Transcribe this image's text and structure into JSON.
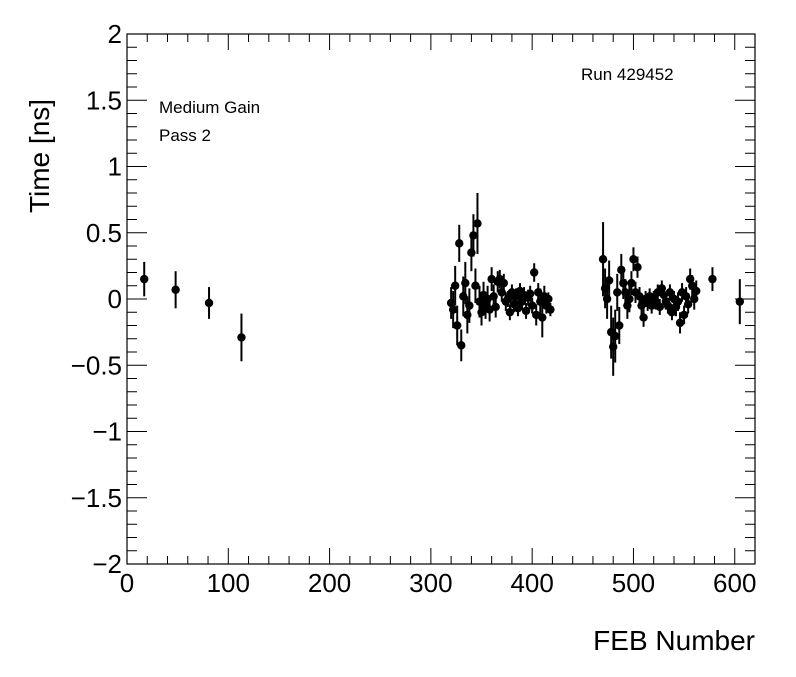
{
  "chart_data": {
    "type": "scatter",
    "title": "",
    "xlabel": "FEB Number",
    "ylabel": "Time [ns]",
    "xlim": [
      0,
      620
    ],
    "ylim": [
      -2,
      2
    ],
    "x_ticks": [
      0,
      100,
      200,
      300,
      400,
      500,
      600
    ],
    "y_ticks": [
      -2,
      -1.5,
      -1,
      -0.5,
      0,
      0.5,
      1,
      1.5,
      2
    ],
    "x_tick_labels": [
      "0",
      "100",
      "200",
      "300",
      "400",
      "500",
      "600"
    ],
    "y_tick_labels": [
      "−2",
      "−1.5",
      "−1",
      "−0.5",
      "0",
      "0.5",
      "1",
      "1.5",
      "2"
    ],
    "grid": false,
    "legend": "none",
    "annotations": {
      "run": "Run 429452",
      "gain": "Medium Gain",
      "pass": "Pass 2"
    },
    "series": [
      {
        "marker": "circle",
        "color": "#000000",
        "points": [
          {
            "x": 17,
            "y": 0.15,
            "err": 0.13
          },
          {
            "x": 48,
            "y": 0.07,
            "err": 0.14
          },
          {
            "x": 81,
            "y": -0.03,
            "err": 0.12
          },
          {
            "x": 113,
            "y": -0.29,
            "err": 0.18
          },
          {
            "x": 320,
            "y": -0.03,
            "err": 0.12
          },
          {
            "x": 322,
            "y": -0.08,
            "err": 0.14
          },
          {
            "x": 324,
            "y": 0.1,
            "err": 0.15
          },
          {
            "x": 326,
            "y": -0.2,
            "err": 0.15
          },
          {
            "x": 328,
            "y": 0.42,
            "err": 0.14
          },
          {
            "x": 330,
            "y": -0.35,
            "err": 0.12
          },
          {
            "x": 332,
            "y": 0.02,
            "err": 0.15
          },
          {
            "x": 334,
            "y": 0.12,
            "err": 0.16
          },
          {
            "x": 336,
            "y": -0.12,
            "err": 0.14
          },
          {
            "x": 338,
            "y": -0.05,
            "err": 0.13
          },
          {
            "x": 340,
            "y": 0.35,
            "err": 0.14
          },
          {
            "x": 342,
            "y": 0.48,
            "err": 0.16
          },
          {
            "x": 344,
            "y": 0.1,
            "err": 0.13
          },
          {
            "x": 346,
            "y": 0.57,
            "err": 0.23
          },
          {
            "x": 348,
            "y": -0.02,
            "err": 0.12
          },
          {
            "x": 350,
            "y": -0.1,
            "err": 0.1
          },
          {
            "x": 352,
            "y": 0.03,
            "err": 0.1
          },
          {
            "x": 354,
            "y": -0.05,
            "err": 0.1
          },
          {
            "x": 356,
            "y": 0.0,
            "err": 0.1
          },
          {
            "x": 358,
            "y": -0.08,
            "err": 0.09
          },
          {
            "x": 360,
            "y": 0.15,
            "err": 0.09
          },
          {
            "x": 362,
            "y": 0.02,
            "err": 0.09
          },
          {
            "x": 364,
            "y": -0.06,
            "err": 0.08
          },
          {
            "x": 366,
            "y": 0.13,
            "err": 0.08
          },
          {
            "x": 368,
            "y": 0.15,
            "err": 0.07
          },
          {
            "x": 370,
            "y": 0.05,
            "err": 0.07
          },
          {
            "x": 372,
            "y": 0.12,
            "err": 0.07
          },
          {
            "x": 374,
            "y": -0.02,
            "err": 0.07
          },
          {
            "x": 376,
            "y": 0.0,
            "err": 0.06
          },
          {
            "x": 378,
            "y": -0.1,
            "err": 0.06
          },
          {
            "x": 380,
            "y": 0.05,
            "err": 0.06
          },
          {
            "x": 382,
            "y": -0.04,
            "err": 0.06
          },
          {
            "x": 384,
            "y": 0.02,
            "err": 0.06
          },
          {
            "x": 386,
            "y": -0.07,
            "err": 0.06
          },
          {
            "x": 388,
            "y": 0.06,
            "err": 0.06
          },
          {
            "x": 390,
            "y": -0.02,
            "err": 0.06
          },
          {
            "x": 392,
            "y": 0.03,
            "err": 0.06
          },
          {
            "x": 394,
            "y": -0.09,
            "err": 0.06
          },
          {
            "x": 396,
            "y": 0.01,
            "err": 0.06
          },
          {
            "x": 398,
            "y": 0.04,
            "err": 0.06
          },
          {
            "x": 400,
            "y": -0.05,
            "err": 0.06
          },
          {
            "x": 402,
            "y": 0.2,
            "err": 0.07
          },
          {
            "x": 404,
            "y": -0.12,
            "err": 0.08
          },
          {
            "x": 406,
            "y": 0.05,
            "err": 0.07
          },
          {
            "x": 408,
            "y": -0.02,
            "err": 0.1
          },
          {
            "x": 410,
            "y": -0.14,
            "err": 0.15
          },
          {
            "x": 412,
            "y": 0.02,
            "err": 0.08
          },
          {
            "x": 414,
            "y": -0.05,
            "err": 0.06
          },
          {
            "x": 416,
            "y": 0.0,
            "err": 0.05
          },
          {
            "x": 418,
            "y": -0.08,
            "err": 0.05
          },
          {
            "x": 470,
            "y": 0.3,
            "err": 0.28
          },
          {
            "x": 472,
            "y": 0.08,
            "err": 0.15
          },
          {
            "x": 474,
            "y": 0.0,
            "err": 0.15
          },
          {
            "x": 476,
            "y": 0.14,
            "err": 0.15
          },
          {
            "x": 478,
            "y": -0.25,
            "err": 0.2
          },
          {
            "x": 480,
            "y": -0.36,
            "err": 0.22
          },
          {
            "x": 482,
            "y": -0.28,
            "err": 0.2
          },
          {
            "x": 484,
            "y": 0.05,
            "err": 0.14
          },
          {
            "x": 486,
            "y": -0.2,
            "err": 0.14
          },
          {
            "x": 488,
            "y": 0.22,
            "err": 0.12
          },
          {
            "x": 490,
            "y": 0.12,
            "err": 0.12
          },
          {
            "x": 492,
            "y": 0.05,
            "err": 0.1
          },
          {
            "x": 494,
            "y": -0.05,
            "err": 0.1
          },
          {
            "x": 496,
            "y": 0.0,
            "err": 0.1
          },
          {
            "x": 498,
            "y": 0.12,
            "err": 0.09
          },
          {
            "x": 500,
            "y": 0.3,
            "err": 0.09
          },
          {
            "x": 502,
            "y": 0.05,
            "err": 0.08
          },
          {
            "x": 504,
            "y": 0.24,
            "err": 0.08
          },
          {
            "x": 506,
            "y": 0.02,
            "err": 0.07
          },
          {
            "x": 508,
            "y": -0.05,
            "err": 0.07
          },
          {
            "x": 510,
            "y": -0.14,
            "err": 0.07
          },
          {
            "x": 512,
            "y": 0.0,
            "err": 0.06
          },
          {
            "x": 514,
            "y": -0.03,
            "err": 0.06
          },
          {
            "x": 516,
            "y": 0.02,
            "err": 0.06
          },
          {
            "x": 518,
            "y": -0.05,
            "err": 0.06
          },
          {
            "x": 520,
            "y": 0.0,
            "err": 0.06
          },
          {
            "x": 522,
            "y": -0.02,
            "err": 0.06
          },
          {
            "x": 524,
            "y": 0.05,
            "err": 0.06
          },
          {
            "x": 526,
            "y": -0.06,
            "err": 0.06
          },
          {
            "x": 528,
            "y": 0.08,
            "err": 0.06
          },
          {
            "x": 530,
            "y": 0.03,
            "err": 0.06
          },
          {
            "x": 532,
            "y": -0.02,
            "err": 0.06
          },
          {
            "x": 534,
            "y": -0.05,
            "err": 0.06
          },
          {
            "x": 536,
            "y": 0.05,
            "err": 0.06
          },
          {
            "x": 538,
            "y": -0.1,
            "err": 0.06
          },
          {
            "x": 540,
            "y": 0.0,
            "err": 0.06
          },
          {
            "x": 542,
            "y": -0.06,
            "err": 0.07
          },
          {
            "x": 544,
            "y": -0.02,
            "err": 0.07
          },
          {
            "x": 546,
            "y": -0.18,
            "err": 0.08
          },
          {
            "x": 548,
            "y": 0.05,
            "err": 0.07
          },
          {
            "x": 550,
            "y": -0.12,
            "err": 0.07
          },
          {
            "x": 552,
            "y": 0.02,
            "err": 0.07
          },
          {
            "x": 554,
            "y": -0.04,
            "err": 0.07
          },
          {
            "x": 556,
            "y": 0.15,
            "err": 0.08
          },
          {
            "x": 558,
            "y": 0.1,
            "err": 0.08
          },
          {
            "x": 560,
            "y": 0.0,
            "err": 0.08
          },
          {
            "x": 562,
            "y": 0.06,
            "err": 0.08
          },
          {
            "x": 578,
            "y": 0.15,
            "err": 0.09
          },
          {
            "x": 605,
            "y": -0.02,
            "err": 0.17
          }
        ]
      }
    ]
  }
}
